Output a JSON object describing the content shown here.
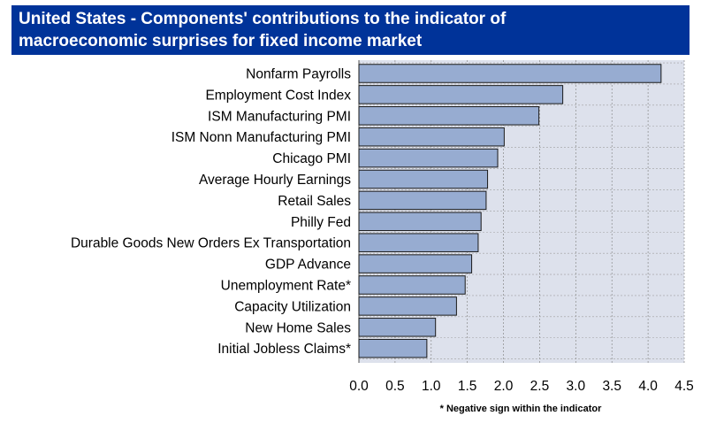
{
  "title_line1": "United States - Components' contributions to the indicator of",
  "title_line2": "macroeconomic surprises for fixed income market",
  "footnote": "* Negative sign within the indicator",
  "colors": {
    "title_bg": "#003399",
    "plot_bg": "#dde1ec",
    "bar_fill": "#97acd1",
    "bar_stroke": "#1a1a1a"
  },
  "chart_data": {
    "type": "bar",
    "orientation": "horizontal",
    "categories": [
      "Nonfarm Payrolls",
      "Employment Cost Index",
      "ISM Manufacturing PMI",
      "ISM Nonn Manufacturing PMI",
      "Chicago PMI",
      "Average Hourly Earnings",
      "Retail Sales",
      "Philly Fed",
      "Durable Goods New Orders Ex Transportation",
      "GDP Advance",
      "Unemployment Rate*",
      "Capacity Utilization",
      "New Home Sales",
      "Initial Jobless Claims*"
    ],
    "values": [
      4.18,
      2.82,
      2.49,
      2.01,
      1.92,
      1.78,
      1.76,
      1.69,
      1.65,
      1.56,
      1.47,
      1.35,
      1.06,
      0.94
    ],
    "xlim": [
      0,
      4.5
    ],
    "xticks": [
      "0.0",
      "0.5",
      "1.0",
      "1.5",
      "2.0",
      "2.5",
      "3.0",
      "3.5",
      "4.0",
      "4.5"
    ],
    "grid": true,
    "legend": false
  }
}
